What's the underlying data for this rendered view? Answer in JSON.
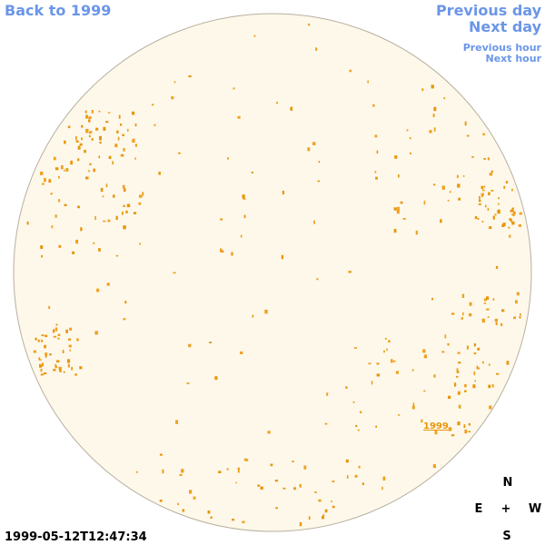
{
  "header": {
    "back_link": "Back to 1999",
    "previous_day": "Previous day",
    "next_day": "Next day",
    "previous_hour": "Previous hour",
    "next_hour": "Next hour"
  },
  "disk": {
    "region_label": "1999"
  },
  "compass": {
    "north": "N",
    "east": "E",
    "center": "+",
    "west": "W",
    "south": "S"
  },
  "timestamp": "1999-05-12T12:47:34"
}
